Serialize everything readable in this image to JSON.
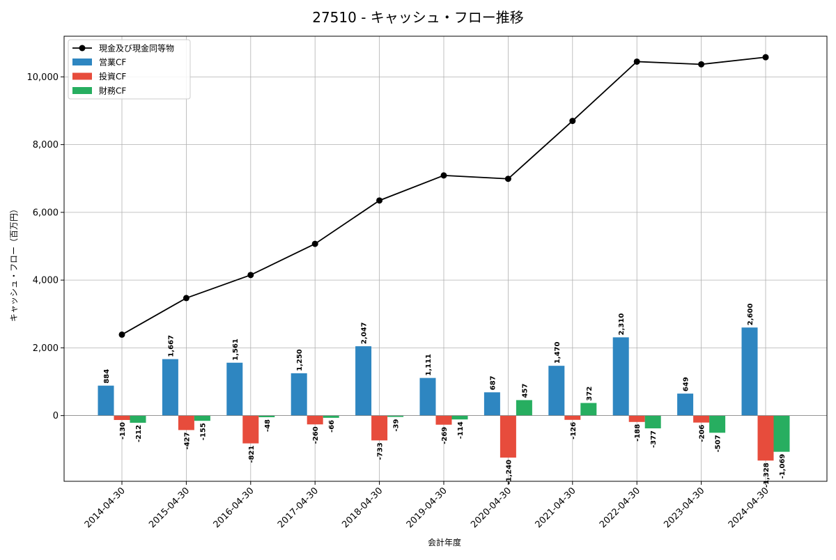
{
  "chart_data": {
    "type": "bar",
    "title": "27510 - キャッシュ・フロー推移",
    "xlabel": "会計年度",
    "ylabel": "キャッシュ・フロー（百万円）",
    "categories": [
      "2014-04-30",
      "2015-04-30",
      "2016-04-30",
      "2017-04-30",
      "2018-04-30",
      "2019-04-30",
      "2020-04-30",
      "2021-04-30",
      "2022-04-30",
      "2023-04-30",
      "2024-04-30"
    ],
    "ylim": [
      -1940,
      11200
    ],
    "yticks": [
      0,
      2000,
      4000,
      6000,
      8000,
      10000
    ],
    "ytick_labels": [
      "0",
      "2,000",
      "4,000",
      "6,000",
      "8,000",
      "10,000"
    ],
    "grid": true,
    "legend_position": "top-left",
    "line_series": {
      "name": "現金及び現金同等物",
      "color": "#000000",
      "values": [
        2390,
        3470,
        4150,
        5070,
        6350,
        7090,
        6990,
        8700,
        10450,
        10370,
        10580
      ]
    },
    "series": [
      {
        "name": "営業CF",
        "color": "#2e86c1",
        "values": [
          884,
          1667,
          1561,
          1250,
          2047,
          1111,
          687,
          1470,
          2310,
          649,
          2600
        ],
        "labels": [
          "884",
          "1,667",
          "1,561",
          "1,250",
          "2,047",
          "1,111",
          "687",
          "1,470",
          "2,310",
          "649",
          "2,600"
        ]
      },
      {
        "name": "投資CF",
        "color": "#e74c3c",
        "values": [
          -130,
          -427,
          -821,
          -260,
          -733,
          -269,
          -1240,
          -126,
          -188,
          -206,
          -1328
        ],
        "labels": [
          "-130",
          "-427",
          "-821",
          "-260",
          "-733",
          "-269",
          "-1,240",
          "-126",
          "-188",
          "-206",
          "-1,328"
        ]
      },
      {
        "name": "財務CF",
        "color": "#27ae60",
        "values": [
          -212,
          -155,
          -48,
          -66,
          -39,
          -114,
          457,
          372,
          -377,
          -507,
          -1069
        ],
        "labels": [
          "-212",
          "-155",
          "-48",
          "-66",
          "-39",
          "-114",
          "457",
          "372",
          "-377",
          "-507",
          "-1,069"
        ]
      }
    ]
  }
}
